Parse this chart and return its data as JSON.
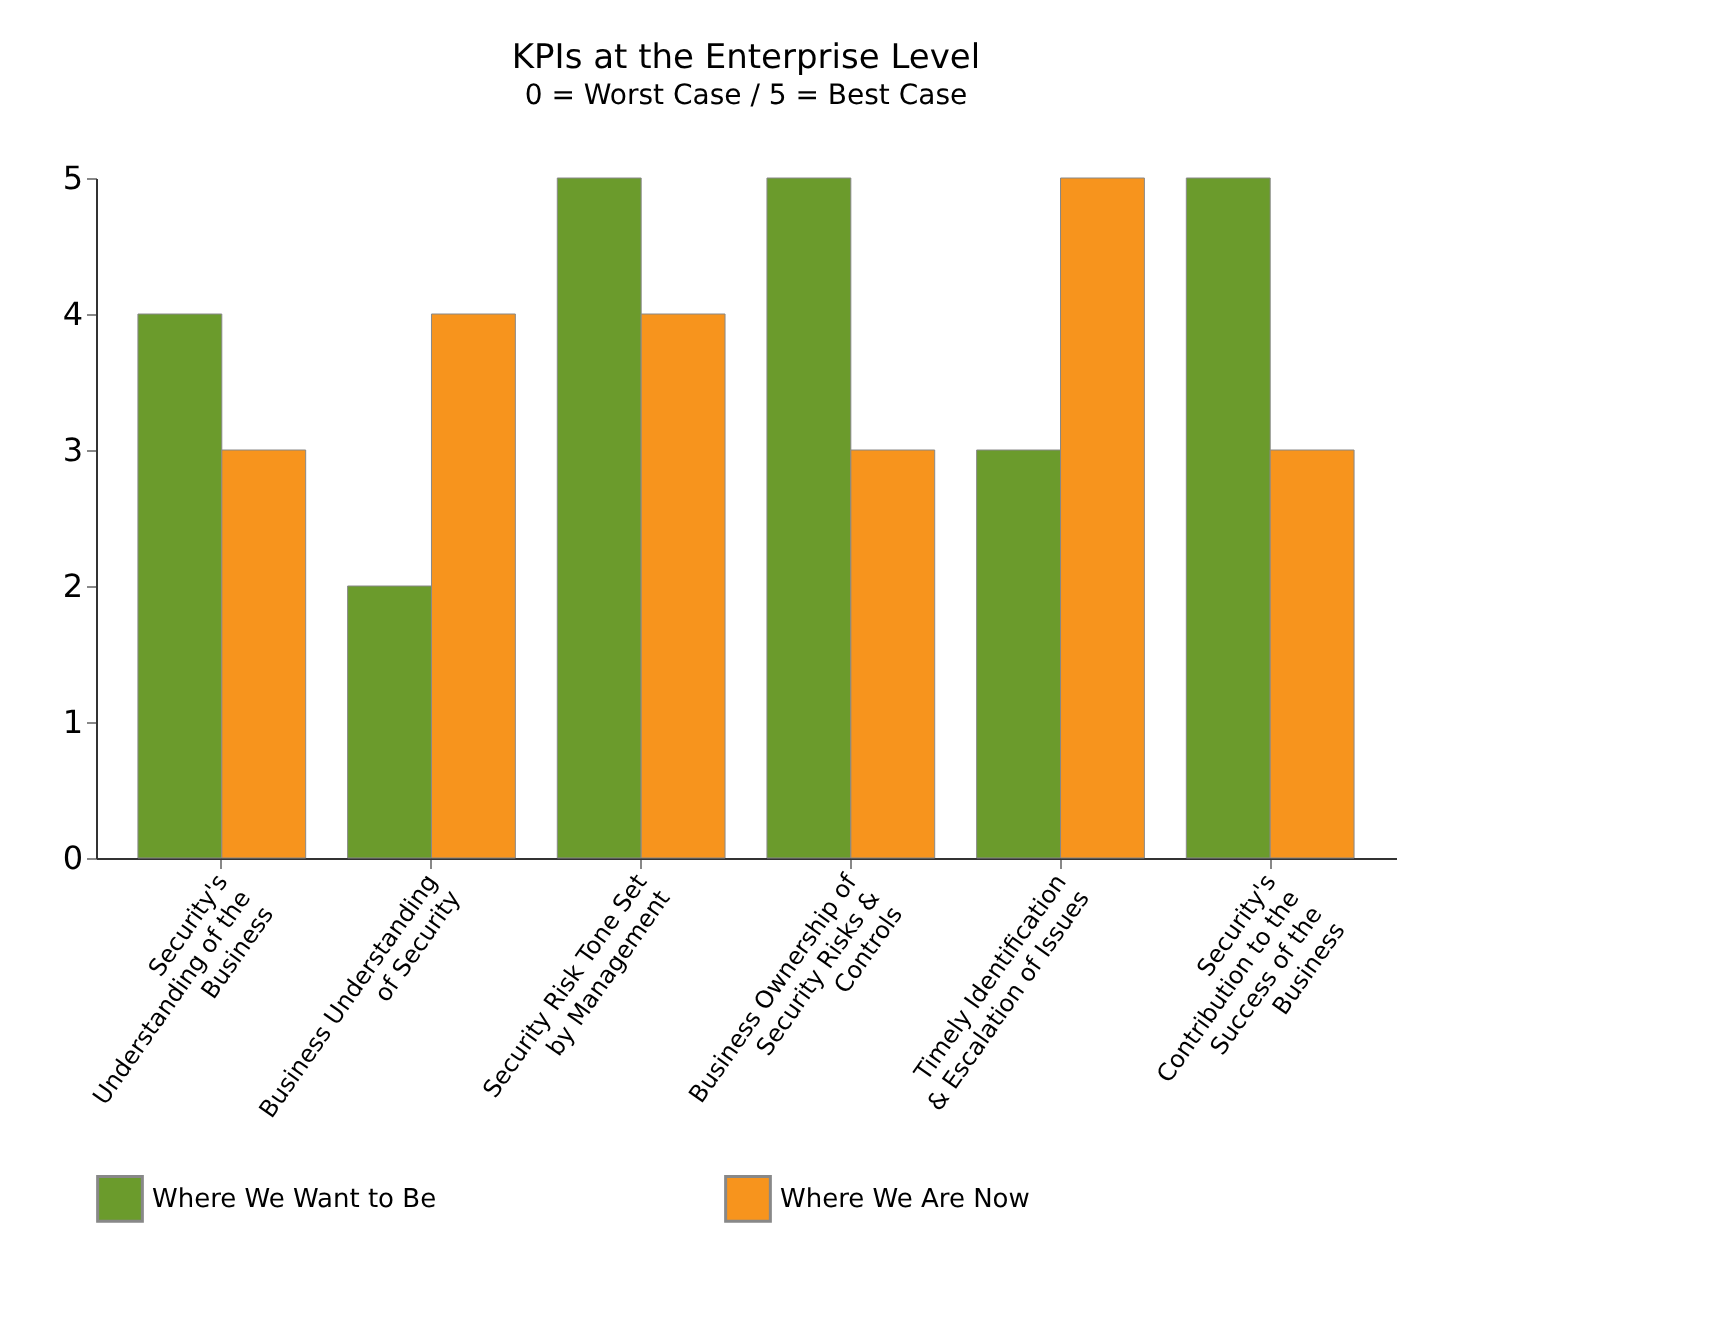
{
  "chart_data": {
    "type": "bar",
    "title": "KPIs at the Enterprise Level",
    "subtitle": "0 = Worst Case / 5 = Best Case",
    "categories": [
      "Security's Understanding of the Business",
      "Business Understanding of Security",
      "Security Risk Tone Set by Management",
      "Business Ownership of Security Risks & Controls",
      "Timely Identification & Escalation of Issues",
      "Security's Contribution to the Success of the Business"
    ],
    "series": [
      {
        "name": "Where We Want to Be",
        "color": "#6b9b2c",
        "values": [
          4,
          2,
          5,
          5,
          3,
          5
        ]
      },
      {
        "name": "Where We Are Now",
        "color": "#f7941d",
        "values": [
          3,
          4,
          4,
          3,
          5,
          3
        ]
      }
    ],
    "ylim": [
      0,
      5
    ],
    "yticks": [
      0,
      1,
      2,
      3,
      4,
      5
    ],
    "grid": false,
    "legend": "bottom"
  }
}
